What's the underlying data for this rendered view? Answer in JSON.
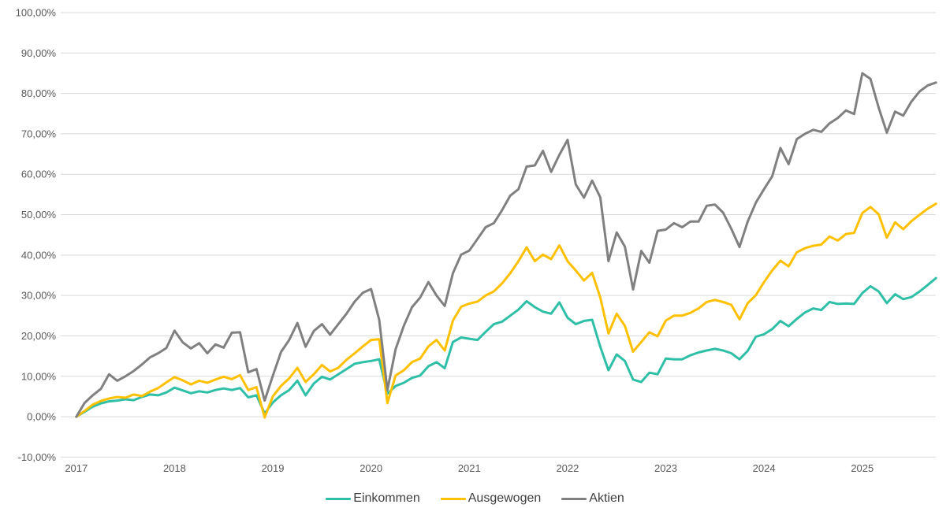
{
  "page": {
    "background_color": "#ffffff",
    "grid_color": "#d9d9d9",
    "axis_text_color": "#595959",
    "legend_text_color": "#404040"
  },
  "chart_data": {
    "type": "line",
    "title": "",
    "xlabel": "",
    "ylabel": "",
    "unit": "percent",
    "grid": true,
    "legend_position": "bottom-center",
    "y_axis": {
      "min": -10,
      "max": 100,
      "step": 10,
      "number_format": "0,00%"
    },
    "y_tick_labels": [
      "100,00%",
      "90,00%",
      "80,00%",
      "70,00%",
      "60,00%",
      "50,00%",
      "40,00%",
      "30,00%",
      "20,00%",
      "10,00%",
      "0,00%",
      "-10,00%"
    ],
    "x_tick_labels": [
      "2017",
      "2018",
      "2019",
      "2020",
      "2021",
      "2022",
      "2023",
      "2024",
      "2025"
    ],
    "x": [
      "2017-01",
      "2017-02",
      "2017-03",
      "2017-04",
      "2017-05",
      "2017-06",
      "2017-07",
      "2017-08",
      "2017-09",
      "2017-10",
      "2017-11",
      "2017-12",
      "2018-01",
      "2018-02",
      "2018-03",
      "2018-04",
      "2018-05",
      "2018-06",
      "2018-07",
      "2018-08",
      "2018-09",
      "2018-10",
      "2018-11",
      "2018-12",
      "2019-01",
      "2019-02",
      "2019-03",
      "2019-04",
      "2019-05",
      "2019-06",
      "2019-07",
      "2019-08",
      "2019-09",
      "2019-10",
      "2019-11",
      "2019-12",
      "2020-01",
      "2020-02",
      "2020-03",
      "2020-04",
      "2020-05",
      "2020-06",
      "2020-07",
      "2020-08",
      "2020-09",
      "2020-10",
      "2020-11",
      "2020-12",
      "2021-01",
      "2021-02",
      "2021-03",
      "2021-04",
      "2021-05",
      "2021-06",
      "2021-07",
      "2021-08",
      "2021-09",
      "2021-10",
      "2021-11",
      "2021-12",
      "2022-01",
      "2022-02",
      "2022-03",
      "2022-04",
      "2022-05",
      "2022-06",
      "2022-07",
      "2022-08",
      "2022-09",
      "2022-10",
      "2022-11",
      "2022-12",
      "2023-01",
      "2023-02",
      "2023-03",
      "2023-04",
      "2023-05",
      "2023-06",
      "2023-07",
      "2023-08",
      "2023-09",
      "2023-10",
      "2023-11",
      "2023-12",
      "2024-01",
      "2024-02",
      "2024-03",
      "2024-04",
      "2024-05",
      "2024-06",
      "2024-07",
      "2024-08",
      "2024-09",
      "2024-10",
      "2024-11",
      "2024-12",
      "2025-01",
      "2025-02",
      "2025-03",
      "2025-04",
      "2025-05",
      "2025-06",
      "2025-07",
      "2025-08",
      "2025-09",
      "2025-10"
    ],
    "series": [
      {
        "name": "Einkommen",
        "color": "#2fbfa7",
        "values": [
          0.0,
          1.2,
          2.5,
          3.3,
          3.8,
          4.0,
          4.3,
          4.1,
          4.9,
          5.5,
          5.3,
          6.0,
          7.2,
          6.5,
          5.8,
          6.3,
          6.0,
          6.6,
          7.0,
          6.6,
          7.1,
          4.8,
          5.3,
          0.8,
          3.5,
          5.3,
          6.6,
          8.9,
          5.3,
          8.2,
          9.9,
          9.2,
          10.5,
          11.8,
          13.1,
          13.5,
          13.8,
          14.2,
          5.7,
          7.6,
          8.4,
          9.6,
          10.2,
          12.5,
          13.5,
          12.0,
          18.5,
          19.6,
          19.3,
          19.0,
          21.0,
          22.9,
          23.5,
          25.0,
          26.5,
          28.6,
          27.1,
          26.0,
          25.5,
          28.3,
          24.5,
          22.9,
          23.7,
          24.0,
          17.3,
          11.5,
          15.4,
          13.8,
          9.2,
          8.6,
          10.9,
          10.5,
          14.4,
          14.2,
          14.2,
          15.2,
          15.9,
          16.4,
          16.8,
          16.4,
          15.7,
          14.2,
          16.3,
          19.8,
          20.4,
          21.7,
          23.7,
          22.4,
          24.2,
          25.8,
          26.8,
          26.4,
          28.4,
          27.9,
          28.0,
          27.9,
          30.6,
          32.3,
          31.0,
          28.1,
          30.3,
          29.1,
          29.6,
          31.0,
          32.6,
          34.3
        ]
      },
      {
        "name": "Ausgewogen",
        "color": "#ffc000",
        "values": [
          0.0,
          1.4,
          3.0,
          3.9,
          4.5,
          4.9,
          4.7,
          5.5,
          5.1,
          6.2,
          7.1,
          8.5,
          9.8,
          9.0,
          8.0,
          8.9,
          8.4,
          9.2,
          9.9,
          9.3,
          10.3,
          6.6,
          7.3,
          -0.2,
          5.0,
          7.6,
          9.5,
          12.1,
          8.6,
          10.5,
          12.8,
          11.2,
          12.1,
          14.1,
          15.7,
          17.4,
          19.0,
          19.2,
          3.4,
          10.2,
          11.5,
          13.5,
          14.4,
          17.4,
          19.0,
          16.4,
          23.8,
          27.2,
          28.0,
          28.5,
          30.0,
          31.0,
          33.0,
          35.5,
          38.5,
          41.9,
          38.5,
          40.1,
          39.0,
          42.4,
          38.5,
          36.2,
          33.7,
          35.6,
          29.5,
          20.6,
          25.5,
          22.5,
          16.1,
          18.5,
          20.9,
          19.9,
          23.8,
          25.0,
          25.0,
          25.7,
          26.8,
          28.4,
          28.9,
          28.4,
          27.7,
          24.1,
          28.1,
          30.1,
          33.3,
          36.2,
          38.6,
          37.2,
          40.7,
          41.7,
          42.3,
          42.6,
          44.6,
          43.6,
          45.2,
          45.5,
          50.4,
          51.9,
          50.1,
          44.3,
          48.1,
          46.4,
          48.4,
          50.0,
          51.5,
          52.7
        ]
      },
      {
        "name": "Aktien",
        "color": "#808080",
        "values": [
          0.0,
          3.4,
          5.3,
          6.9,
          10.5,
          8.9,
          10.0,
          11.3,
          12.9,
          14.7,
          15.7,
          17.0,
          21.3,
          18.4,
          16.9,
          18.2,
          15.7,
          17.9,
          17.1,
          20.8,
          20.9,
          11.0,
          11.8,
          4.0,
          10.1,
          16.0,
          19.0,
          23.2,
          17.3,
          21.2,
          22.9,
          20.3,
          22.9,
          25.5,
          28.5,
          30.7,
          31.6,
          24.0,
          6.6,
          16.7,
          22.5,
          27.1,
          29.5,
          33.3,
          30.0,
          27.4,
          35.5,
          40.1,
          41.1,
          44.0,
          46.9,
          47.9,
          51.1,
          54.7,
          56.3,
          61.9,
          62.2,
          65.8,
          60.6,
          64.8,
          68.5,
          57.5,
          54.2,
          58.4,
          54.3,
          38.5,
          45.6,
          42.1,
          31.5,
          41.0,
          38.1,
          46.0,
          46.3,
          47.9,
          46.9,
          48.3,
          48.3,
          52.2,
          52.5,
          50.5,
          46.5,
          42.0,
          48.3,
          53.0,
          56.3,
          59.5,
          66.5,
          62.5,
          68.7,
          70.0,
          71.0,
          70.5,
          72.6,
          73.9,
          75.8,
          74.9,
          85.0,
          83.6,
          76.5,
          70.3,
          75.5,
          74.5,
          78.0,
          80.5,
          82.0,
          82.7
        ]
      }
    ]
  }
}
